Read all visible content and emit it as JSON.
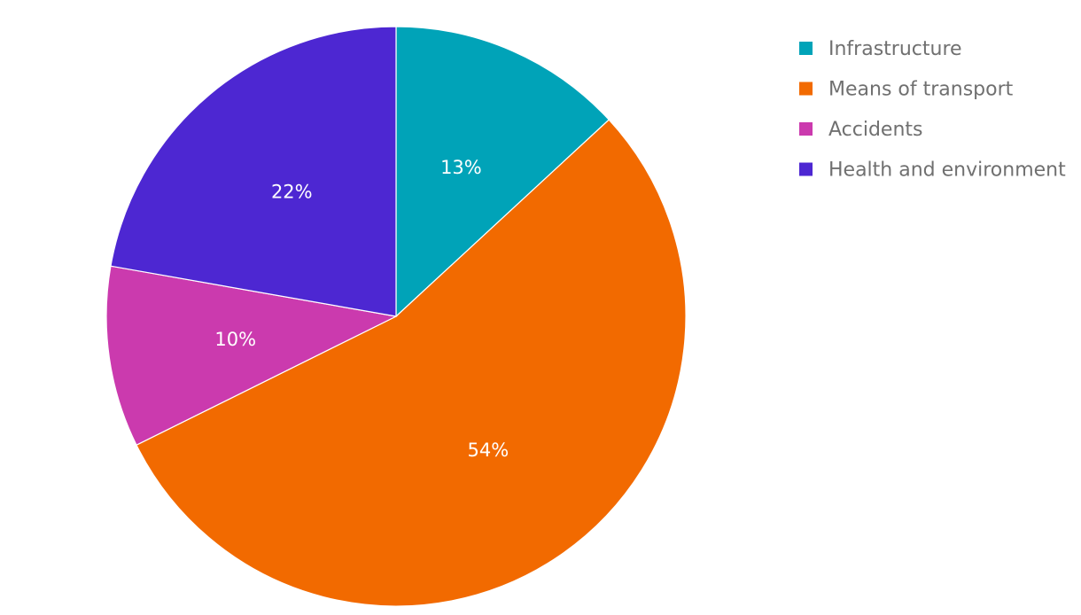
{
  "chart_data": {
    "type": "pie",
    "title": "",
    "categories": [
      "Infrastructure",
      "Means of transport",
      "Accidents",
      "Health and environment"
    ],
    "values": [
      13,
      54,
      10,
      22
    ],
    "labels": [
      "13%",
      "54%",
      "10%",
      "22%"
    ],
    "colors": [
      "#00A3B8",
      "#F26A00",
      "#CB3AAE",
      "#4D27D2"
    ],
    "legend": {
      "position": "top-right",
      "items": [
        {
          "label": "Infrastructure",
          "color": "#00A3B8"
        },
        {
          "label": "Means of transport",
          "color": "#F26A00"
        },
        {
          "label": "Accidents",
          "color": "#CB3AAE"
        },
        {
          "label": "Health and environment",
          "color": "#4D27D2"
        }
      ]
    }
  }
}
